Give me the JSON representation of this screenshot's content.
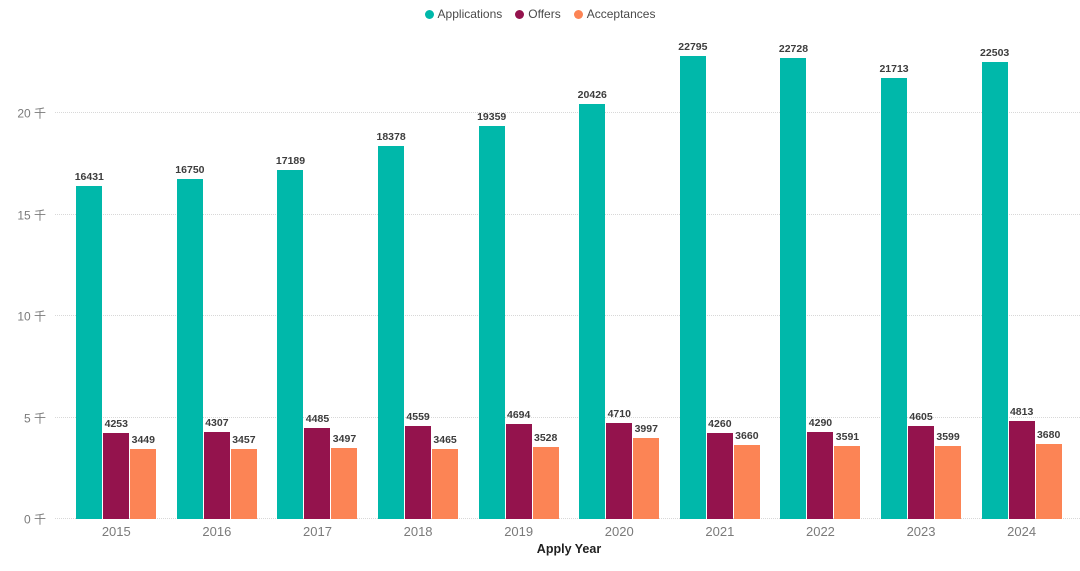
{
  "chart_data": {
    "type": "bar",
    "title": "",
    "xlabel": "Apply Year",
    "ylabel": "",
    "unit": "千",
    "categories": [
      "2015",
      "2016",
      "2017",
      "2018",
      "2019",
      "2020",
      "2021",
      "2022",
      "2023",
      "2024"
    ],
    "series": [
      {
        "name": "Applications",
        "color": "#00B8AA",
        "values": [
          16431,
          16750,
          17189,
          18378,
          19359,
          20426,
          22795,
          22728,
          21713,
          22503
        ]
      },
      {
        "name": "Offers",
        "color": "#94134D",
        "values": [
          4253,
          4307,
          4485,
          4559,
          4694,
          4710,
          4260,
          4290,
          4605,
          4813
        ]
      },
      {
        "name": "Acceptances",
        "color": "#FC8455",
        "values": [
          3449,
          3457,
          3497,
          3465,
          3528,
          3997,
          3660,
          3591,
          3599,
          3680
        ]
      }
    ],
    "y_ticks": [
      {
        "value": 0,
        "label": "0 千"
      },
      {
        "value": 5000,
        "label": "5 千"
      },
      {
        "value": 10000,
        "label": "10 千"
      },
      {
        "value": 15000,
        "label": "15 千"
      },
      {
        "value": 20000,
        "label": "20 千"
      }
    ],
    "ylim": [
      0,
      23550
    ],
    "grid": "horizontal-dotted",
    "legend_position": "top-center",
    "colors": {
      "background": "#ffffff",
      "gridline": "#d8d8d8",
      "axis_text": "#7a7a7a",
      "value_label": "#3d3d3d",
      "legend_text": "#4a4a4a"
    }
  }
}
